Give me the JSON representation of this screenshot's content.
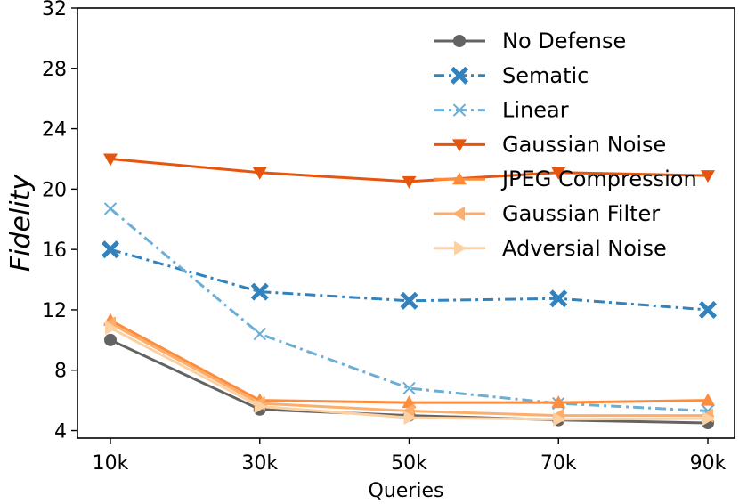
{
  "chart_data": {
    "type": "line",
    "title": "",
    "xlabel": "Queries",
    "ylabel": "Fidelity",
    "categories": [
      "10k",
      "30k",
      "50k",
      "70k",
      "90k"
    ],
    "yticks": [
      4,
      8,
      12,
      16,
      20,
      24,
      28,
      32
    ],
    "ylim": [
      3.5,
      32
    ],
    "grid": false,
    "legend_position": "top-right",
    "series": [
      {
        "name": "No Defense",
        "values": [
          10.0,
          5.4,
          5.0,
          4.7,
          4.5
        ],
        "color": "#636363",
        "marker": "circle",
        "dash": "solid"
      },
      {
        "name": "Sematic",
        "values": [
          16.0,
          13.2,
          12.6,
          12.75,
          12.0
        ],
        "color": "#3182bd",
        "marker": "filled-x",
        "dash": "dashdot"
      },
      {
        "name": "Linear",
        "values": [
          18.7,
          10.4,
          6.8,
          5.8,
          5.3
        ],
        "color": "#6baed6",
        "marker": "x",
        "dash": "dashdot"
      },
      {
        "name": "Gaussian Noise",
        "values": [
          22.0,
          21.1,
          20.5,
          21.1,
          20.9
        ],
        "color": "#e6550d",
        "marker": "triangle-down",
        "dash": "solid"
      },
      {
        "name": "JPEG Compression",
        "values": [
          11.3,
          6.0,
          5.85,
          5.85,
          6.0
        ],
        "color": "#fd8d3c",
        "marker": "triangle-up",
        "dash": "solid"
      },
      {
        "name": "Gaussian Filter",
        "values": [
          11.1,
          5.8,
          5.3,
          5.0,
          5.0
        ],
        "color": "#fdae6b",
        "marker": "triangle-left",
        "dash": "solid"
      },
      {
        "name": "Adversial Noise",
        "values": [
          10.8,
          5.6,
          4.85,
          4.75,
          4.8
        ],
        "color": "#fdd0a2",
        "marker": "triangle-right",
        "dash": "solid"
      }
    ]
  }
}
